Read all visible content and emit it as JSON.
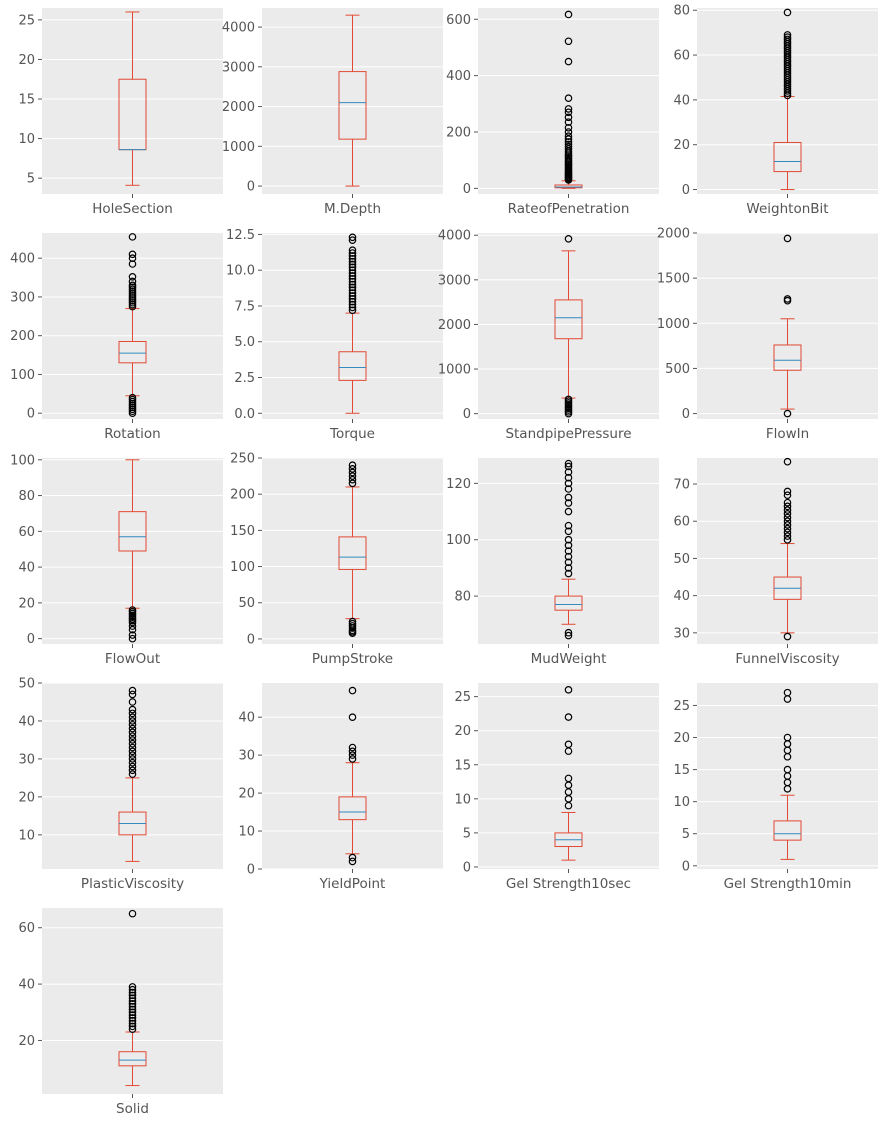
{
  "chart_data": [
    {
      "type": "box",
      "category": "HoleSection",
      "ylim": [
        3.0,
        26.5
      ],
      "ticks": [
        5,
        10,
        15,
        20,
        25
      ],
      "tick_labels": [
        "5",
        "10",
        "15",
        "20",
        "25"
      ],
      "box": {
        "whislo": 4.1,
        "q1": 8.6,
        "med": 8.6,
        "q3": 17.5,
        "whishi": 26.0
      },
      "outliers": []
    },
    {
      "type": "box",
      "category": "M.Depth",
      "ylim": [
        -200,
        4480
      ],
      "ticks": [
        0,
        1000,
        2000,
        3000,
        4000
      ],
      "tick_labels": [
        "0",
        "1000",
        "2000",
        "3000",
        "4000"
      ],
      "box": {
        "whislo": 0,
        "q1": 1180,
        "med": 2100,
        "q3": 2880,
        "whishi": 4300
      },
      "outliers": []
    },
    {
      "type": "box",
      "category": "RateofPenetration",
      "ylim": [
        -20,
        640
      ],
      "ticks": [
        0,
        200,
        400,
        600
      ],
      "tick_labels": [
        "0",
        "200",
        "400",
        "600"
      ],
      "box": {
        "whislo": 0,
        "q1": 2,
        "med": 5,
        "q3": 12,
        "whishi": 27
      },
      "outliers": [
        30,
        33,
        37,
        40,
        44,
        48,
        52,
        56,
        60,
        65,
        70,
        75,
        80,
        85,
        90,
        95,
        100,
        106,
        112,
        118,
        125,
        132,
        140,
        148,
        156,
        165,
        175,
        185,
        200,
        215,
        235,
        252,
        270,
        282,
        320,
        450,
        522,
        617
      ]
    },
    {
      "type": "box",
      "category": "WeightonBit",
      "ylim": [
        -2,
        81
      ],
      "ticks": [
        0,
        20,
        40,
        60,
        80
      ],
      "tick_labels": [
        "0",
        "20",
        "40",
        "60",
        "80"
      ],
      "box": {
        "whislo": 0,
        "q1": 8,
        "med": 12.5,
        "q3": 21,
        "whishi": 41.5
      },
      "outliers": [
        42,
        43,
        44,
        45,
        46,
        47,
        48,
        49,
        50,
        51,
        52,
        53,
        54,
        55,
        56,
        57,
        58,
        59,
        60,
        61,
        62,
        63,
        64,
        65,
        66,
        67,
        68,
        69,
        79
      ]
    },
    {
      "type": "box",
      "category": "Rotation",
      "ylim": [
        -15,
        465
      ],
      "ticks": [
        0,
        100,
        200,
        300,
        400
      ],
      "tick_labels": [
        "0",
        "100",
        "200",
        "300",
        "400"
      ],
      "box": {
        "whislo": 45,
        "q1": 130,
        "med": 155,
        "q3": 185,
        "whishi": 270
      },
      "outliers": [
        0,
        5,
        10,
        15,
        20,
        25,
        30,
        35,
        40,
        275,
        280,
        285,
        290,
        295,
        300,
        305,
        310,
        315,
        320,
        325,
        330,
        340,
        352,
        385,
        400,
        410,
        455
      ]
    },
    {
      "type": "box",
      "category": "Torque",
      "ylim": [
        -0.4,
        12.6
      ],
      "ticks": [
        0,
        2.5,
        5,
        7.5,
        10,
        12.5
      ],
      "tick_labels": [
        "0.0",
        "2.5",
        "5.0",
        "7.5",
        "10.0",
        "12.5"
      ],
      "box": {
        "whislo": 0,
        "q1": 2.3,
        "med": 3.2,
        "q3": 4.3,
        "whishi": 7.0
      },
      "outliers": [
        7.2,
        7.4,
        7.6,
        7.8,
        8.0,
        8.2,
        8.4,
        8.6,
        8.8,
        9.0,
        9.2,
        9.4,
        9.6,
        9.8,
        10.0,
        10.2,
        10.4,
        10.6,
        10.8,
        11.0,
        11.2,
        11.4,
        12.1,
        12.3
      ]
    },
    {
      "type": "box",
      "category": "StandpipePressure",
      "ylim": [
        -120,
        4050
      ],
      "ticks": [
        0,
        1000,
        2000,
        3000,
        4000
      ],
      "tick_labels": [
        "0",
        "1000",
        "2000",
        "3000",
        "4000"
      ],
      "box": {
        "whislo": 350,
        "q1": 1680,
        "med": 2150,
        "q3": 2550,
        "whishi": 3650
      },
      "outliers": [
        0,
        40,
        80,
        120,
        160,
        200,
        240,
        280,
        320,
        3920
      ]
    },
    {
      "type": "box",
      "category": "FlowIn",
      "ylim": [
        -60,
        2000
      ],
      "ticks": [
        0,
        500,
        1000,
        1500,
        2000
      ],
      "tick_labels": [
        "0",
        "500",
        "1000",
        "1500",
        "2000"
      ],
      "box": {
        "whislo": 50,
        "q1": 480,
        "med": 590,
        "q3": 760,
        "whishi": 1050
      },
      "outliers": [
        0,
        1250,
        1270,
        1940
      ]
    },
    {
      "type": "box",
      "category": "FlowOut",
      "ylim": [
        -3,
        101
      ],
      "ticks": [
        0,
        20,
        40,
        60,
        80,
        100
      ],
      "tick_labels": [
        "0",
        "20",
        "40",
        "60",
        "80",
        "100"
      ],
      "box": {
        "whislo": 17,
        "q1": 49,
        "med": 57,
        "q3": 71,
        "whishi": 100
      },
      "outliers": [
        0,
        2,
        5,
        7,
        9,
        10,
        11,
        12,
        13,
        14,
        15,
        16
      ]
    },
    {
      "type": "box",
      "category": "PumpStroke",
      "ylim": [
        -7,
        250
      ],
      "ticks": [
        0,
        50,
        100,
        150,
        200,
        250
      ],
      "tick_labels": [
        "0",
        "50",
        "100",
        "150",
        "200",
        "250"
      ],
      "box": {
        "whislo": 28,
        "q1": 96,
        "med": 113,
        "q3": 141,
        "whishi": 210
      },
      "outliers": [
        8,
        10,
        12,
        15,
        18,
        21,
        24,
        215,
        220,
        225,
        230,
        235,
        240
      ]
    },
    {
      "type": "box",
      "category": "MudWeight",
      "ylim": [
        63,
        129
      ],
      "ticks": [
        80,
        100,
        120
      ],
      "tick_labels": [
        "80",
        "100",
        "120"
      ],
      "box": {
        "whislo": 70,
        "q1": 75,
        "med": 77,
        "q3": 80,
        "whishi": 86
      },
      "outliers": [
        66,
        67,
        88,
        90,
        92,
        94,
        96,
        98,
        100,
        103,
        105,
        110,
        113,
        115,
        118,
        120,
        122,
        124,
        126,
        127
      ]
    },
    {
      "type": "box",
      "category": "FunnelViscosity",
      "ylim": [
        27,
        77
      ],
      "ticks": [
        30,
        40,
        50,
        60,
        70
      ],
      "tick_labels": [
        "30",
        "40",
        "50",
        "60",
        "70"
      ],
      "box": {
        "whislo": 30,
        "q1": 39,
        "med": 42,
        "q3": 45,
        "whishi": 54
      },
      "outliers": [
        29,
        55,
        56,
        57,
        58,
        59,
        60,
        61,
        62,
        63,
        64,
        65,
        67,
        68,
        76
      ]
    },
    {
      "type": "box",
      "category": "PlasticViscosity",
      "ylim": [
        1,
        50
      ],
      "ticks": [
        10,
        20,
        30,
        40,
        50
      ],
      "tick_labels": [
        "10",
        "20",
        "30",
        "40",
        "50"
      ],
      "box": {
        "whislo": 3,
        "q1": 10,
        "med": 13,
        "q3": 16,
        "whishi": 25
      },
      "outliers": [
        26,
        27,
        28,
        29,
        30,
        31,
        32,
        33,
        34,
        35,
        36,
        37,
        38,
        39,
        40,
        41,
        42,
        43,
        45,
        47,
        48
      ]
    },
    {
      "type": "box",
      "category": "YieldPoint",
      "ylim": [
        0,
        49
      ],
      "ticks": [
        0,
        10,
        20,
        30,
        40
      ],
      "tick_labels": [
        "0",
        "10",
        "20",
        "30",
        "40"
      ],
      "box": {
        "whislo": 4,
        "q1": 13,
        "med": 15,
        "q3": 19,
        "whishi": 28
      },
      "outliers": [
        2,
        3,
        29,
        30,
        31,
        32,
        40,
        47
      ]
    },
    {
      "type": "box",
      "category": "Gel Strength10sec",
      "ylim": [
        -0.3,
        27
      ],
      "ticks": [
        0,
        5,
        10,
        15,
        20,
        25
      ],
      "tick_labels": [
        "0",
        "5",
        "10",
        "15",
        "20",
        "25"
      ],
      "box": {
        "whislo": 1,
        "q1": 3,
        "med": 4,
        "q3": 5,
        "whishi": 8
      },
      "outliers": [
        9,
        10,
        11,
        12,
        13,
        17,
        18,
        22,
        26
      ]
    },
    {
      "type": "box",
      "category": "Gel Strength10min",
      "ylim": [
        -0.5,
        28.5
      ],
      "ticks": [
        0,
        5,
        10,
        15,
        20,
        25
      ],
      "tick_labels": [
        "0",
        "5",
        "10",
        "15",
        "20",
        "25"
      ],
      "box": {
        "whislo": 1,
        "q1": 4,
        "med": 5,
        "q3": 7,
        "whishi": 11
      },
      "outliers": [
        12,
        13,
        14,
        15,
        17,
        18,
        19,
        20,
        26,
        27
      ]
    },
    {
      "type": "box",
      "category": "Solid",
      "ylim": [
        1,
        67
      ],
      "ticks": [
        20,
        40,
        60
      ],
      "tick_labels": [
        "20",
        "40",
        "60"
      ],
      "box": {
        "whislo": 4,
        "q1": 11,
        "med": 13,
        "q3": 16,
        "whishi": 23
      },
      "outliers": [
        24,
        25,
        26,
        27,
        28,
        29,
        30,
        31,
        32,
        33,
        34,
        35,
        36,
        37,
        38,
        39,
        65
      ]
    }
  ],
  "colors": {
    "panel_bg": "#ebebeb",
    "box": "#e24a33",
    "median": "#348abd",
    "tick_label": "#555555",
    "outlier_edge": "#000000"
  }
}
